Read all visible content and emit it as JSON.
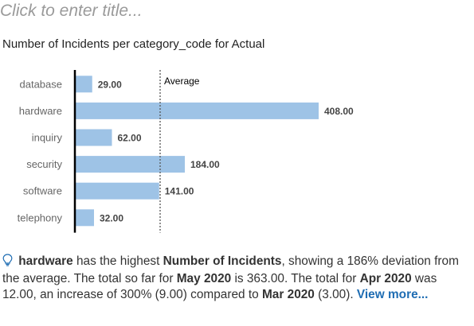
{
  "header": {
    "title_placeholder": "Click to enter title..."
  },
  "chart_data": {
    "type": "bar",
    "orientation": "horizontal",
    "title": "Number of Incidents per category_code for Actual",
    "categories": [
      "database",
      "hardware",
      "inquiry",
      "security",
      "software",
      "telephony"
    ],
    "values": [
      29,
      408,
      62,
      184,
      141,
      32
    ],
    "value_labels": [
      "29.00",
      "408.00",
      "62.00",
      "184.00",
      "141.00",
      "32.00"
    ],
    "reference_line": {
      "label": "Average",
      "value": 142.67
    },
    "bar_color": "#9ec3e6",
    "grid": false,
    "legend": "none"
  },
  "insight": {
    "category": "hardware",
    "t1": " has the highest ",
    "measure": "Number of Incidents",
    "t2": ", showing a 186% deviation from the average. The total so far for ",
    "period1": "May 2020",
    "t3": " is 363.00. The total for ",
    "period2": "Apr 2020",
    "t4": " was 12.00, an increase of 300% (9.00) compared to ",
    "period3": "Mar 2020",
    "t5": " (3.00). ",
    "link": "View more..."
  }
}
